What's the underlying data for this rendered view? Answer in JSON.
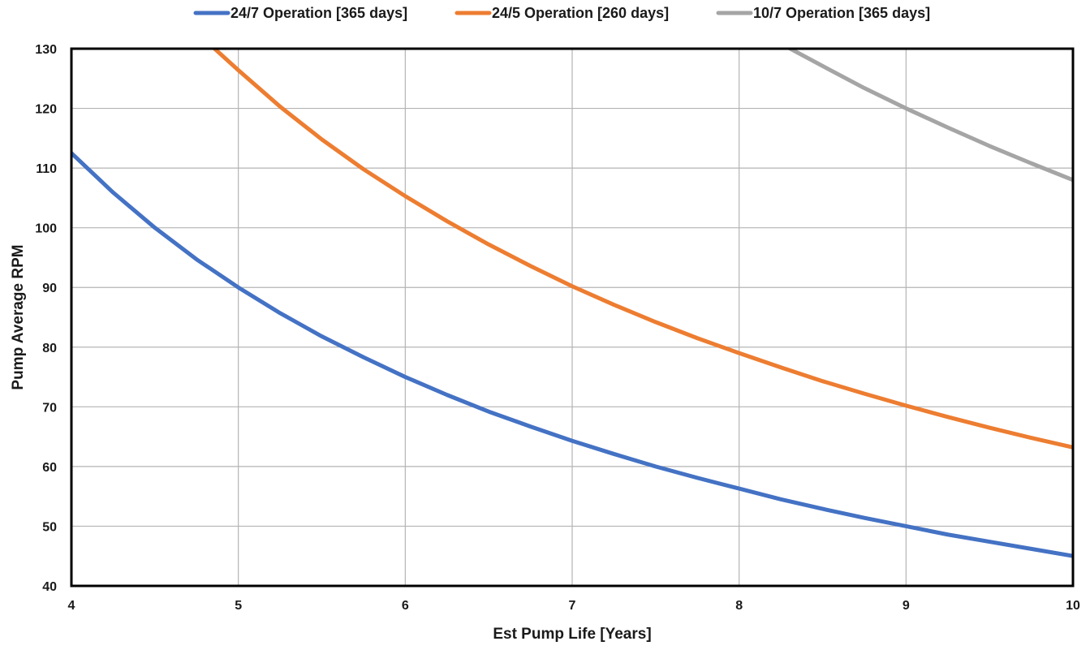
{
  "chart_data": {
    "type": "line",
    "title": "",
    "xlabel": "Est Pump Life [Years]",
    "ylabel": "Pump Average RPM",
    "xlim": [
      4,
      10
    ],
    "ylim": [
      40,
      130
    ],
    "xticks": [
      4,
      5,
      6,
      7,
      8,
      9,
      10
    ],
    "yticks": [
      40,
      50,
      60,
      70,
      80,
      90,
      100,
      110,
      120,
      130
    ],
    "grid": true,
    "legend_position": "top",
    "series": [
      {
        "name": "24/7 Operation [365 days]",
        "color": "#4472C4",
        "x": [
          4.0,
          4.25,
          4.5,
          4.75,
          5.0,
          5.25,
          5.5,
          5.75,
          6.0,
          6.25,
          6.5,
          6.75,
          7.0,
          7.25,
          7.5,
          7.75,
          8.0,
          8.25,
          8.5,
          8.75,
          9.0,
          9.25,
          9.5,
          9.75,
          10.0
        ],
        "y": [
          112.5,
          105.9,
          100.0,
          94.7,
          90.0,
          85.7,
          81.8,
          78.3,
          75.0,
          72.0,
          69.2,
          66.7,
          64.3,
          62.1,
          60.0,
          58.1,
          56.3,
          54.5,
          52.9,
          51.4,
          50.0,
          48.6,
          47.4,
          46.2,
          45.0
        ]
      },
      {
        "name": "24/5 Operation [260 days]",
        "color": "#ED7D31",
        "x": [
          4.85,
          5.0,
          5.25,
          5.5,
          5.75,
          6.0,
          6.25,
          6.5,
          6.75,
          7.0,
          7.25,
          7.5,
          7.75,
          8.0,
          8.25,
          8.5,
          8.75,
          9.0,
          9.25,
          9.5,
          9.75,
          10.0
        ],
        "y": [
          130.2,
          126.4,
          120.3,
          114.8,
          109.8,
          105.3,
          101.1,
          97.2,
          93.6,
          90.2,
          87.1,
          84.2,
          81.5,
          79.0,
          76.6,
          74.3,
          72.2,
          70.2,
          68.3,
          66.5,
          64.8,
          63.2
        ]
      },
      {
        "name": "10/7 Operation [365 days]",
        "color": "#A5A5A5",
        "x": [
          8.3,
          8.5,
          8.75,
          9.0,
          9.25,
          9.5,
          9.75,
          10.0
        ],
        "y": [
          130.1,
          127.1,
          123.4,
          120.0,
          116.8,
          113.7,
          110.8,
          108.0
        ]
      }
    ]
  }
}
